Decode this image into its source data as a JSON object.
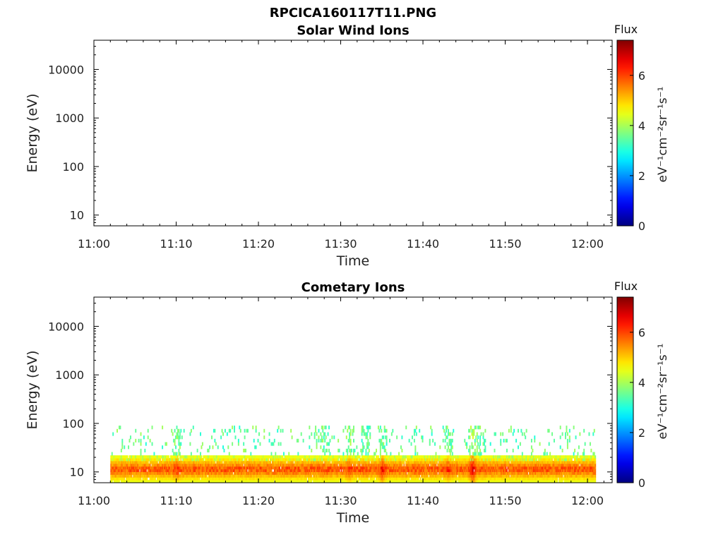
{
  "figure": {
    "title": "RPCICA160117T11.PNG"
  },
  "colors": {
    "axis": "#000000",
    "background": "#ffffff"
  },
  "chart_data": [
    {
      "type": "heatmap",
      "title": "Solar Wind Ions",
      "xlabel": "Time",
      "ylabel": "Energy (eV)",
      "xlim": [
        "11:00",
        "12:03"
      ],
      "ylim": [
        6,
        40000
      ],
      "yscale": "log",
      "xticks": [
        "11:00",
        "11:10",
        "11:20",
        "11:30",
        "11:40",
        "11:50",
        "12:00"
      ],
      "yticks": [
        10,
        100,
        1000,
        10000
      ],
      "ytick_labels": [
        "10",
        "100",
        "1000",
        "10000"
      ],
      "colorbar": {
        "title": "Flux",
        "label": "eV⁻¹cm⁻²sr⁻¹s⁻¹",
        "range": [
          0,
          7.4
        ],
        "ticks": [
          "0",
          "2",
          "4",
          "6"
        ],
        "colormap": "jet"
      },
      "data": "empty"
    },
    {
      "type": "heatmap",
      "title": "Cometary Ions",
      "xlabel": "Time",
      "ylabel": "Energy (eV)",
      "xlim": [
        "11:00",
        "12:03"
      ],
      "ylim": [
        6,
        40000
      ],
      "yscale": "log",
      "xticks": [
        "11:00",
        "11:10",
        "11:20",
        "11:30",
        "11:40",
        "11:50",
        "12:00"
      ],
      "yticks": [
        10,
        100,
        1000,
        10000
      ],
      "ytick_labels": [
        "10",
        "100",
        "1000",
        "10000"
      ],
      "colorbar": {
        "title": "Flux",
        "label": "eV⁻¹cm⁻²sr⁻¹s⁻¹",
        "range": [
          0,
          7.4
        ],
        "ticks": [
          "0",
          "2",
          "4",
          "6"
        ],
        "colormap": "jet"
      },
      "data_extent": {
        "time": [
          "11:02",
          "12:01"
        ],
        "energy_ev": [
          6,
          90
        ]
      },
      "bands": [
        {
          "energy_ev": [
            6,
            22
          ],
          "flux_typical": [
            4.5,
            6.2
          ],
          "flux_peak": 7.2
        },
        {
          "energy_ev": [
            22,
            90
          ],
          "flux_typical": [
            3.0,
            4.0
          ]
        }
      ],
      "enhancements": [
        {
          "time": "11:10",
          "flux": 6.6
        },
        {
          "time": "11:27",
          "flux": 6.0
        },
        {
          "time": "11:28",
          "flux": 6.3
        },
        {
          "time": "11:31",
          "flux": 6.6
        },
        {
          "time": "11:33",
          "flux": 6.3
        },
        {
          "time": "11:35",
          "flux": 6.9
        },
        {
          "time": "11:39",
          "flux": 6.0
        },
        {
          "time": "11:43",
          "flux": 6.6
        },
        {
          "time": "11:46",
          "flux": 7.2
        },
        {
          "time": "11:47",
          "flux": 6.3
        }
      ]
    }
  ]
}
